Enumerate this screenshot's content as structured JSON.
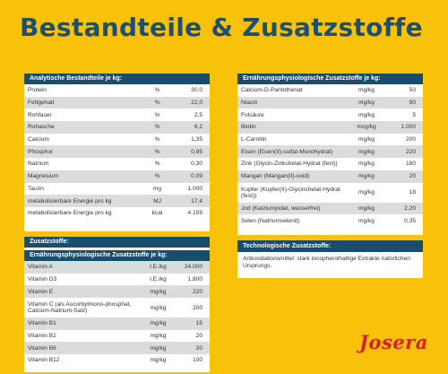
{
  "title": "Bestandteile & Zusatzstoffe",
  "brand": "Josera",
  "analytics": {
    "header": "Analytische Bestandteile je kg:",
    "rows": [
      {
        "name": "Protein",
        "unit": "%",
        "value": "30,0"
      },
      {
        "name": "Fettgehalt",
        "unit": "%",
        "value": "22,0"
      },
      {
        "name": "Rohfaser",
        "unit": "%",
        "value": "2,5"
      },
      {
        "name": "Rohasche",
        "unit": "%",
        "value": "6,2"
      },
      {
        "name": "Calcium",
        "unit": "%",
        "value": "1,35"
      },
      {
        "name": "Phosphor",
        "unit": "%",
        "value": "0,95"
      },
      {
        "name": "Natrium",
        "unit": "%",
        "value": "0,30"
      },
      {
        "name": "Magnesium",
        "unit": "%",
        "value": "0,09"
      },
      {
        "name": "Taurin",
        "unit": "mg",
        "value": "1.000"
      },
      {
        "name": "metabolisierbare Energie pro kg",
        "unit": "MJ",
        "value": "17,4"
      },
      {
        "name": "metabolisierbare Energie pro kg",
        "unit": "kcal",
        "value": "4.159"
      }
    ]
  },
  "additives": {
    "header": "Zusatzstoffe:",
    "subheader": "Ernährungsphysiologische Zusatzstoffe je kg:",
    "rows": [
      {
        "name": "Vitamin A",
        "unit": "I.E./kg",
        "value": "24.000"
      },
      {
        "name": "Vitamin D3",
        "unit": "I.E./kg",
        "value": "1.800"
      },
      {
        "name": "Vitamin E",
        "unit": "mg/kg",
        "value": "220"
      },
      {
        "name": "Vitamin C (als Ascorbylmono-phosphat, Calcium-Natrium-Salz)",
        "unit": "mg/kg",
        "value": "200"
      },
      {
        "name": "Vitamin B1",
        "unit": "mg/kg",
        "value": "15"
      },
      {
        "name": "Vitamin B2",
        "unit": "mg/kg",
        "value": "20"
      },
      {
        "name": "Vitamin B6",
        "unit": "mg/kg",
        "value": "20"
      },
      {
        "name": "Vitamin B12",
        "unit": "mg/kg",
        "value": "100"
      }
    ]
  },
  "nutrition": {
    "header": "Ernährungsphysiologische Zusatzstoffe je kg:",
    "rows": [
      {
        "name": "Calcium-D-Pantothenat",
        "unit": "mg/kg",
        "value": "50"
      },
      {
        "name": "Niacin",
        "unit": "mg/kg",
        "value": "90"
      },
      {
        "name": "Folsäure",
        "unit": "mg/kg",
        "value": "5"
      },
      {
        "name": "Biotin",
        "unit": "mcg/kg",
        "value": "1.000"
      },
      {
        "name": "L-Carnitin",
        "unit": "mg/kg",
        "value": "200"
      },
      {
        "name": "Eisen (Eisen(II)-sulfat-Monohydrat)",
        "unit": "mg/kg",
        "value": "220"
      },
      {
        "name": "Zink (Glycin-Zinkchelat-Hydrat (fest))",
        "unit": "mg/kg",
        "value": "180"
      },
      {
        "name": "Mangan (Mangan(II)-oxid)",
        "unit": "mg/kg",
        "value": "20"
      },
      {
        "name": "Kupfer (Kupfer(II)-Glycinchelat-Hydrat (fest))",
        "unit": "mg/kg",
        "value": "18"
      },
      {
        "name": "Jod (Kalziumjodat, wasserfrei)",
        "unit": "mg/kg",
        "value": "2,20"
      },
      {
        "name": "Selen (Natriumselenit)",
        "unit": "mg/kg",
        "value": "0,35"
      }
    ]
  },
  "technological": {
    "header": "Technologische Zusatzstoffe:",
    "text": "Antioxidationsmittel: stark tocopherolhaltige Extrakte natürlichen Ursprungs."
  },
  "colors": {
    "background": "#f8c20a",
    "header": "#184d6b",
    "title": "#1d4f73",
    "stripe": "#dcdcdc",
    "brand": "#d81e1e"
  }
}
